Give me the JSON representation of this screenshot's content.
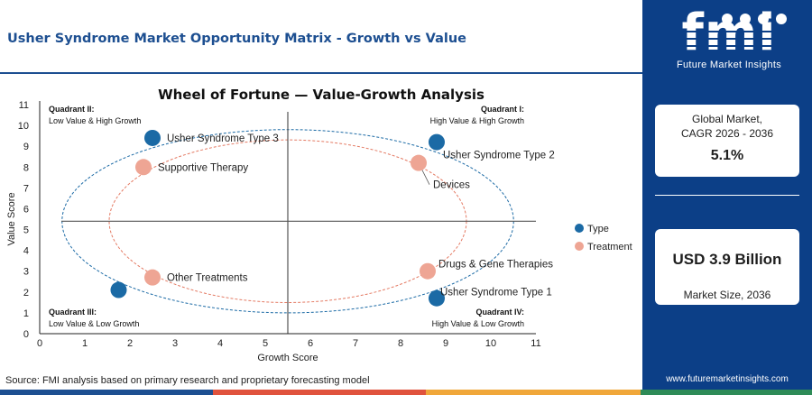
{
  "page": {
    "title": "Usher Syndrome Market Opportunity Matrix - Growth vs Value",
    "source": "Source: FMI analysis based on primary research and proprietary forecasting model"
  },
  "brand": {
    "logo_text": "fmi",
    "logo_subtitle": "Future Market Insights",
    "website": "www.futuremarketinsights.com",
    "colors": {
      "panel": "#0c3f87",
      "title": "#1d4f91",
      "bar": [
        "#1d4f91",
        "#e0533d",
        "#f0a73a",
        "#2e8b57"
      ]
    }
  },
  "stats": {
    "cagr_label_line1": "Global Market,",
    "cagr_label_line2": "CAGR 2026 - 2036",
    "cagr_value": "5.1%",
    "size_value": "USD 3.9 Billion",
    "size_label": "Market Size, 2036"
  },
  "chart_data": {
    "type": "scatter",
    "title": "Wheel of Fortune — Value-Growth Analysis",
    "xlabel": "Growth Score",
    "ylabel": "Value Score",
    "xlim": [
      0,
      11
    ],
    "ylim": [
      0,
      11
    ],
    "xticks": [
      0,
      1,
      2,
      3,
      4,
      5,
      6,
      7,
      8,
      9,
      10,
      11
    ],
    "yticks": [
      0,
      1,
      2,
      3,
      4,
      5,
      6,
      7,
      8,
      9,
      10,
      11
    ],
    "divider_x": 5.5,
    "divider_y": 5.4,
    "grid": false,
    "legend_position": "right",
    "series": [
      {
        "name": "Type",
        "color": "#1b6aa5",
        "points": [
          {
            "label": "Usher Syndrome Type 3",
            "x": 2.5,
            "y": 9.4
          },
          {
            "label": "Usher Syndrome Type 2",
            "x": 8.8,
            "y": 9.2
          },
          {
            "label": "Usher Syndrome Type 1",
            "x": 8.8,
            "y": 1.7
          },
          {
            "label": "",
            "x": 1.75,
            "y": 2.1
          }
        ]
      },
      {
        "name": "Treatment",
        "color": "#eea594",
        "points": [
          {
            "label": "Supportive Therapy",
            "x": 2.3,
            "y": 8.0
          },
          {
            "label": "Devices",
            "x": 8.4,
            "y": 8.2
          },
          {
            "label": "Drugs & Gene Therapies",
            "x": 8.6,
            "y": 3.0
          },
          {
            "label": "Other Treatments",
            "x": 2.5,
            "y": 2.7
          }
        ]
      }
    ],
    "quadrants": [
      {
        "id": "q2",
        "title": "Quadrant II:",
        "desc": "Low Value & High Growth"
      },
      {
        "id": "q1",
        "title": "Quadrant I:",
        "desc": "High Value & High Growth"
      },
      {
        "id": "q3",
        "title": "Quadrant III:",
        "desc": "Low Value & Low Growth"
      },
      {
        "id": "q4",
        "title": "Quadrant IV:",
        "desc": "High Value & Low Growth"
      }
    ]
  }
}
